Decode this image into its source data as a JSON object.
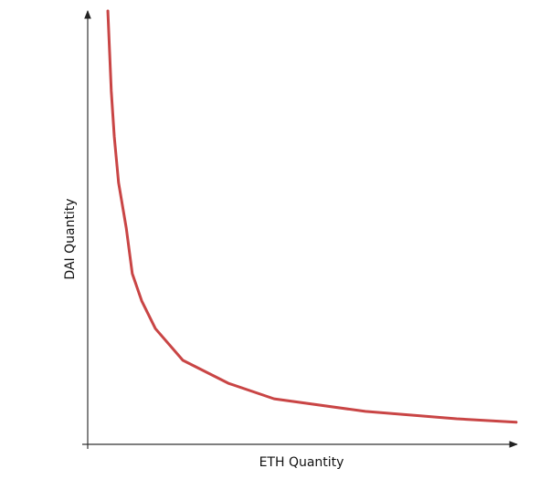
{
  "chart_data": {
    "type": "line",
    "xlabel": "ETH Quantity",
    "ylabel": "DAI Quantity",
    "x": [
      4.7,
      5.5,
      6.2,
      7.2,
      9.0,
      10.4,
      12.6,
      15.8,
      22.2,
      32.8,
      43.5,
      64.8,
      86.1,
      100
    ],
    "values": [
      100,
      81.5,
      71,
      60.4,
      49.9,
      39.4,
      33.1,
      26.7,
      19.4,
      14.1,
      10.5,
      7.6,
      5.9,
      5.1
    ],
    "color": "#c94545",
    "xlim": [
      0,
      100
    ],
    "ylim": [
      0,
      100
    ]
  }
}
